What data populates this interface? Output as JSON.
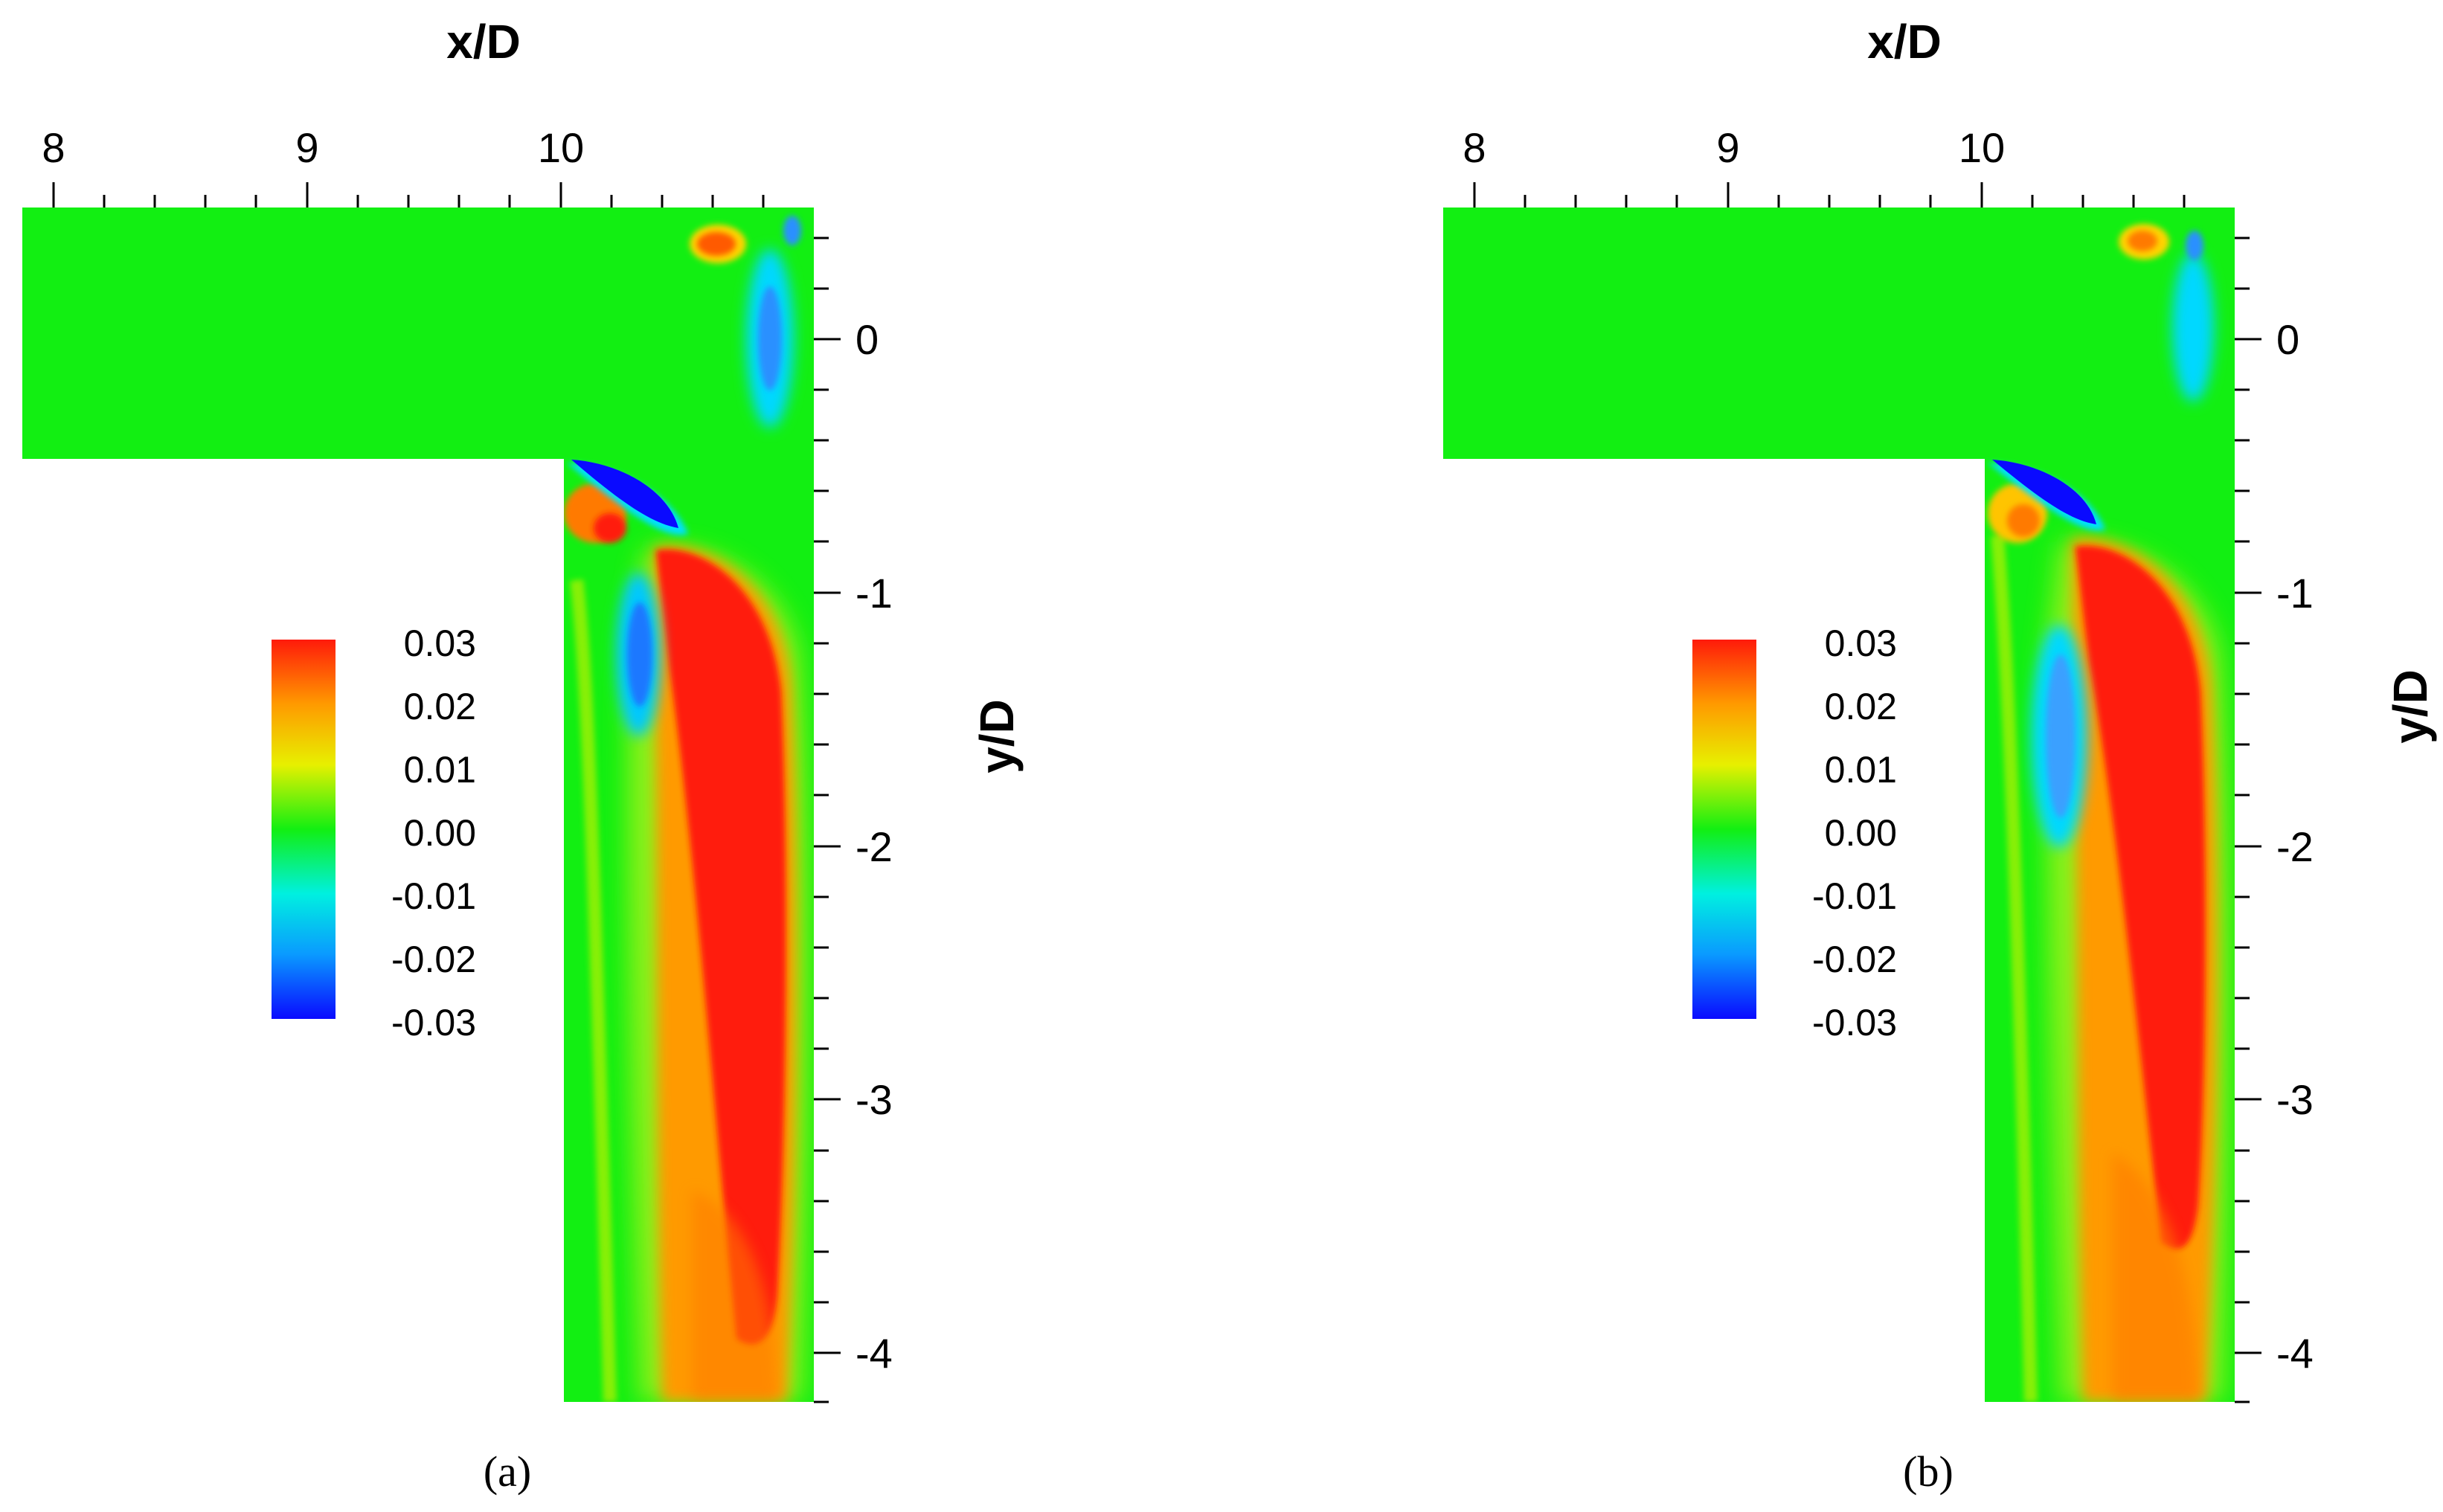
{
  "chart_data": [
    {
      "type": "heatmap",
      "panel_label": "(a)",
      "xlabel": "x/D",
      "ylabel": "y/D",
      "x_range": [
        7.9,
        11.0
      ],
      "y_range": [
        -4.2,
        0.5
      ],
      "x_ticks": [
        "8",
        "9",
        "10"
      ],
      "y_ticks": [
        "0",
        "-1",
        "-2",
        "-3",
        "-4"
      ],
      "colorbar": {
        "min": -0.03,
        "max": 0.03,
        "labels": [
          "0.03",
          "0.02",
          "0.01",
          "0.00",
          "-0.01",
          "-0.02",
          "-0.03"
        ]
      },
      "colors": {
        "background": "#12ef12",
        "high": "#ff1a0a",
        "low": "#0a0aff"
      }
    },
    {
      "type": "heatmap",
      "panel_label": "(b)",
      "xlabel": "x/D",
      "ylabel": "y/D",
      "x_range": [
        7.9,
        11.0
      ],
      "y_range": [
        -4.2,
        0.5
      ],
      "x_ticks": [
        "8",
        "9",
        "10"
      ],
      "y_ticks": [
        "0",
        "-1",
        "-2",
        "-3",
        "-4"
      ],
      "colorbar": {
        "min": -0.03,
        "max": 0.03,
        "labels": [
          "0.03",
          "0.02",
          "0.01",
          "0.00",
          "-0.01",
          "-0.02",
          "-0.03"
        ]
      },
      "colors": {
        "background": "#12ef12",
        "high": "#ff1a0a",
        "low": "#0a0aff"
      }
    }
  ]
}
